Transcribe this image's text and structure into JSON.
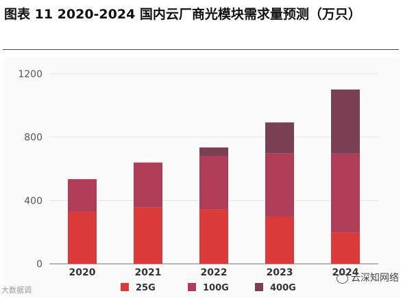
{
  "title": "图表 11 2020-2024 国内云厂商光模块需求量预测（万只）",
  "watermark_left": "大数据调",
  "watermark_right": "云深知网络",
  "chart_data": {
    "type": "bar",
    "stacked": true,
    "categories": [
      "2020",
      "2021",
      "2022",
      "2023",
      "2024"
    ],
    "series": [
      {
        "name": "25G",
        "color": "#d93a3a",
        "values": [
          330,
          355,
          345,
          298,
          198
        ]
      },
      {
        "name": "100G",
        "color": "#b13e58",
        "values": [
          205,
          285,
          335,
          400,
          498
        ]
      },
      {
        "name": "400G",
        "color": "#7a3f52",
        "values": [
          0,
          0,
          55,
          195,
          405
        ]
      }
    ],
    "yticks": [
      0,
      400,
      800,
      1200
    ],
    "ylim": [
      0,
      1200
    ],
    "grid": true,
    "legend_position": "bottom"
  }
}
